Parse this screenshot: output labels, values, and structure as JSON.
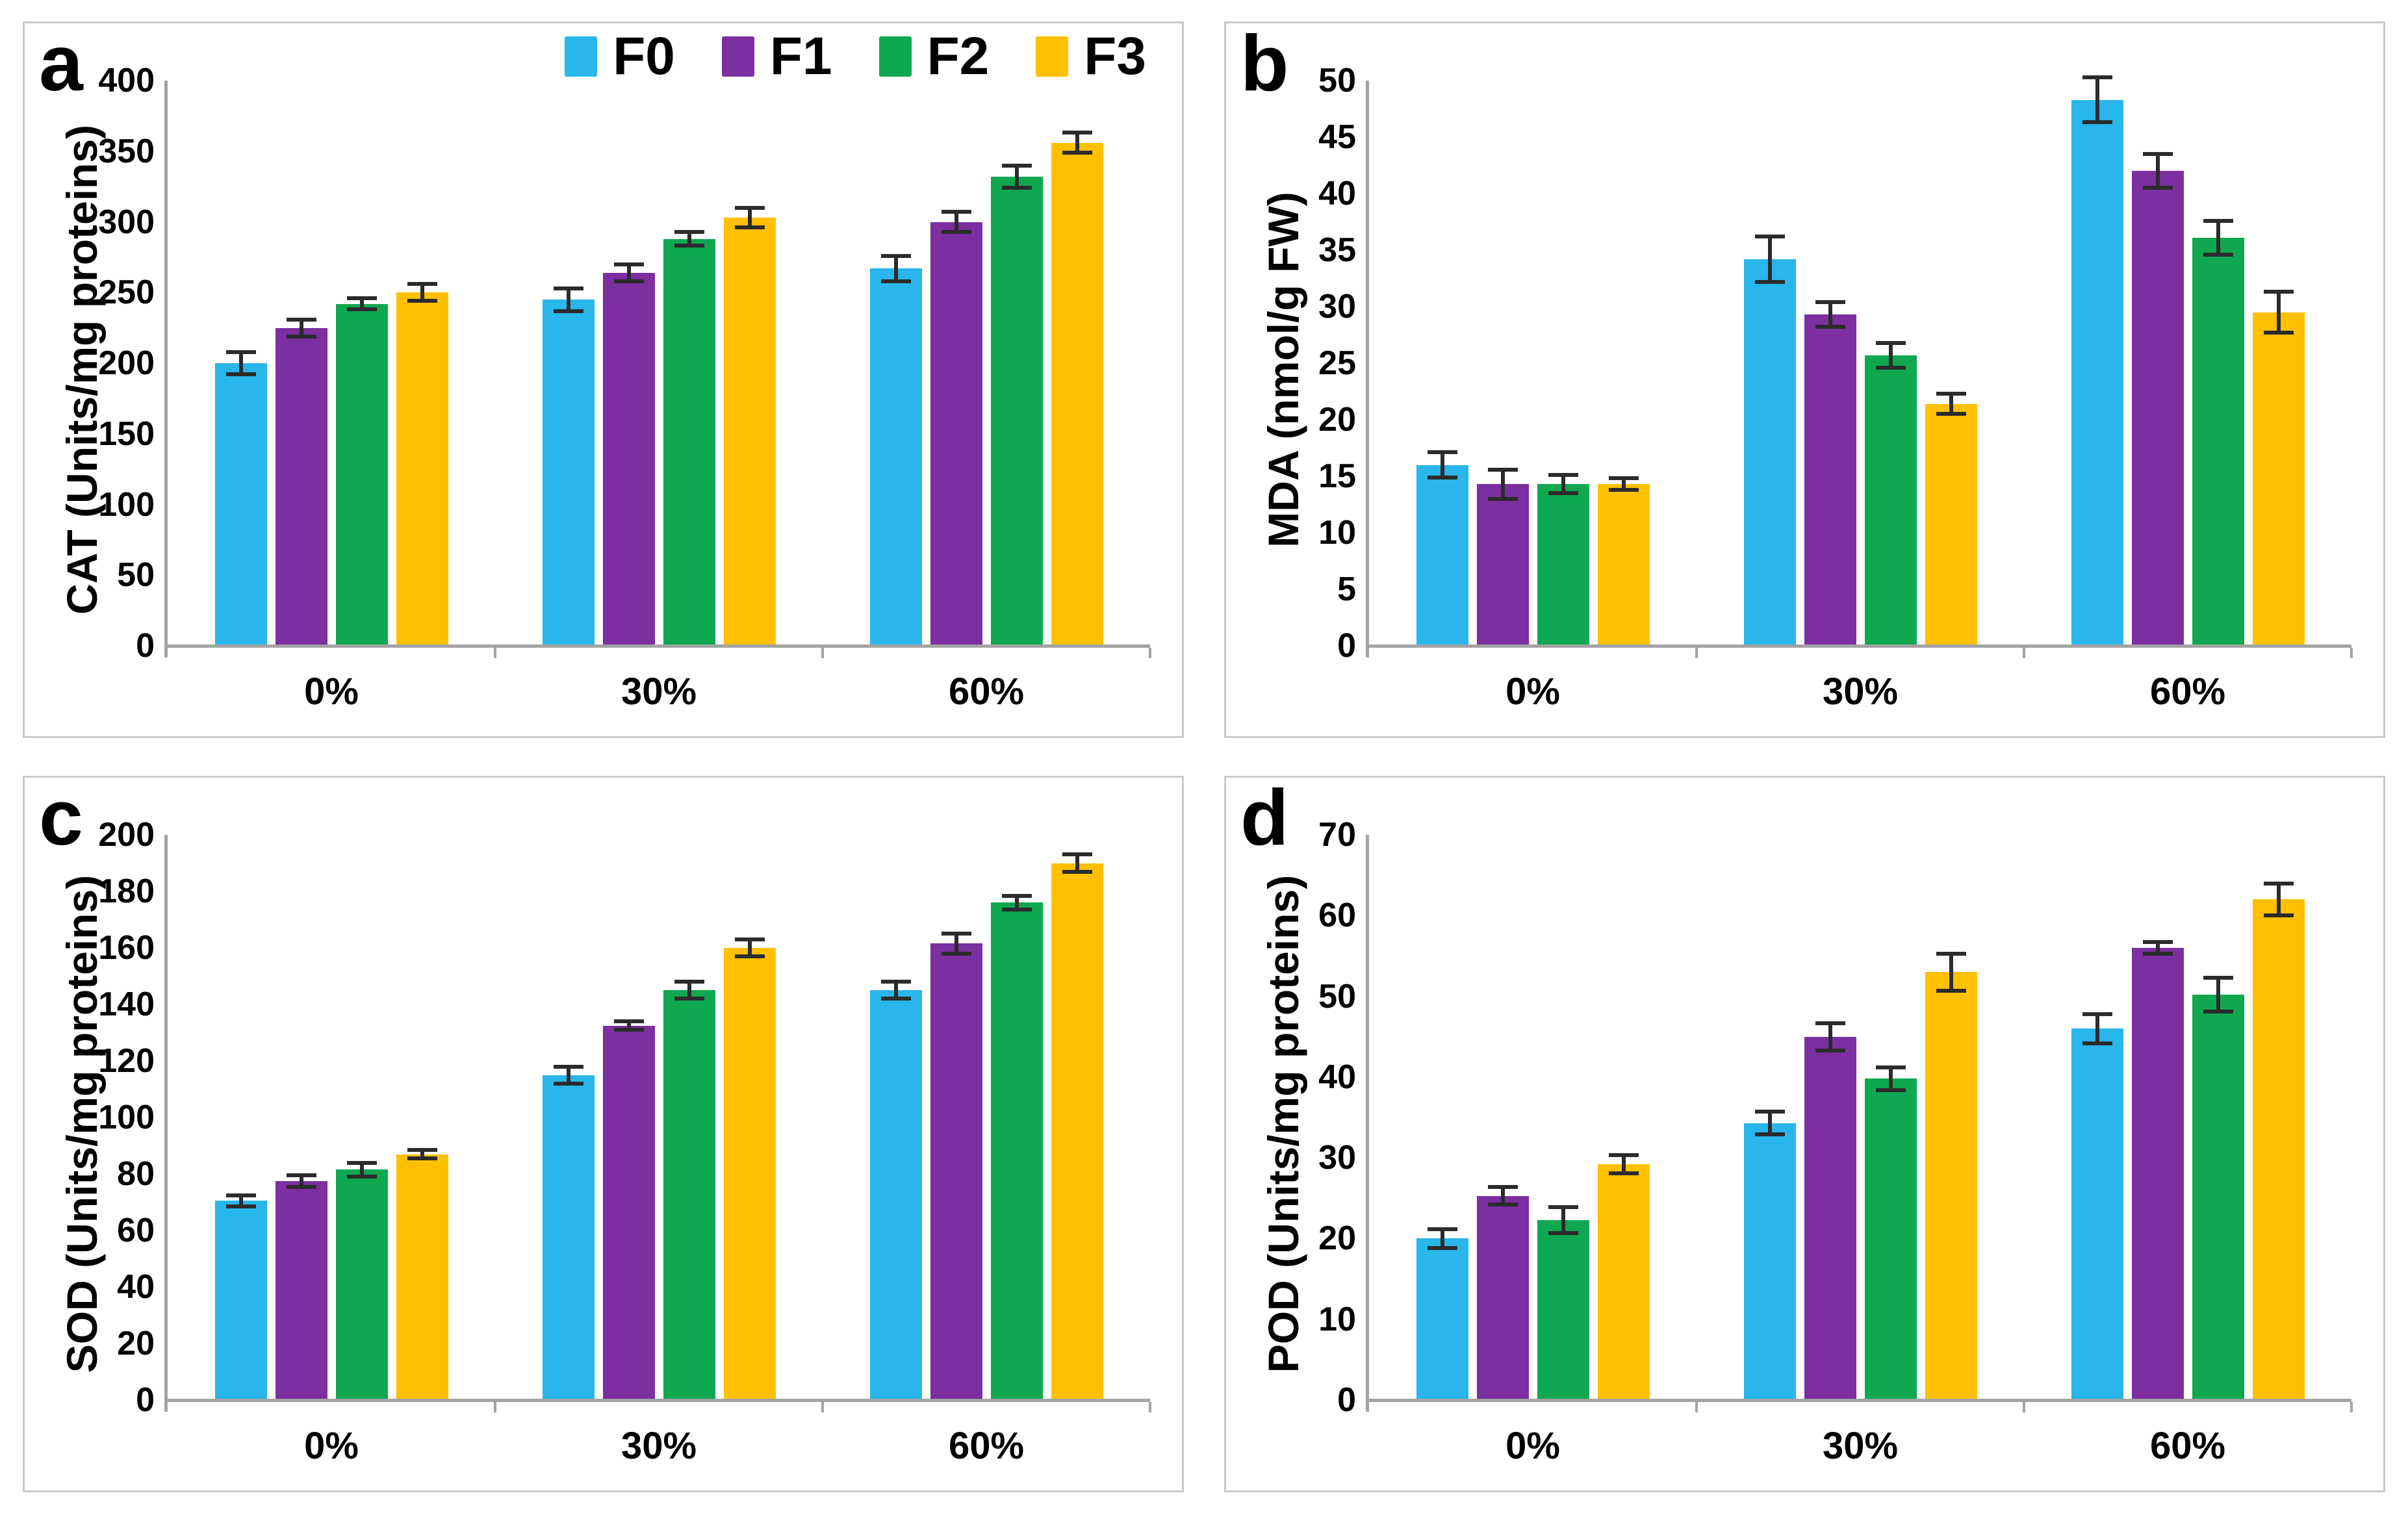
{
  "figure": {
    "background": "#FFFFFF",
    "panel_border_color": "#C9C9C9",
    "axis_color": "#A3A3A3",
    "error_bar_color": "#2B2B2B",
    "legend": {
      "position": "top-right-of-panel-a",
      "labels": [
        "F0",
        "F1",
        "F2",
        "F3"
      ],
      "colors": [
        "#29B6EA",
        "#7B2FA0",
        "#0FA850",
        "#FFC000"
      ]
    }
  },
  "chart_data": [
    {
      "panel_label": "a",
      "type": "bar",
      "title": "",
      "ylabel": "CAT (Units/mg proteins)",
      "xlabel": "",
      "categories": [
        "0%",
        "30%",
        "60%"
      ],
      "ylim": [
        0,
        400
      ],
      "ytick_step": 50,
      "grid": false,
      "legend_position": "top-right",
      "show_legend": true,
      "series": [
        {
          "name": "F0",
          "color": "#29B6EA",
          "values": [
            200,
            245,
            267
          ],
          "errors": [
            8,
            8,
            9
          ]
        },
        {
          "name": "F1",
          "color": "#7B2FA0",
          "values": [
            225,
            264,
            300
          ],
          "errors": [
            6,
            6,
            7
          ]
        },
        {
          "name": "F2",
          "color": "#0FA850",
          "values": [
            242,
            288,
            332
          ],
          "errors": [
            4,
            5,
            8
          ]
        },
        {
          "name": "F3",
          "color": "#FFC000",
          "values": [
            250,
            303,
            356
          ],
          "errors": [
            6,
            7,
            7
          ]
        }
      ]
    },
    {
      "panel_label": "b",
      "type": "bar",
      "title": "",
      "ylabel": "MDA (nmol/g FW)",
      "xlabel": "",
      "categories": [
        "0%",
        "30%",
        "60%"
      ],
      "ylim": [
        0,
        50
      ],
      "ytick_step": 5,
      "grid": false,
      "show_legend": false,
      "series": [
        {
          "name": "F0",
          "color": "#29B6EA",
          "values": [
            16,
            34.2,
            48.3
          ],
          "errors": [
            1.1,
            2.0,
            2.0
          ]
        },
        {
          "name": "F1",
          "color": "#7B2FA0",
          "values": [
            14.3,
            29.3,
            42.0
          ],
          "errors": [
            1.3,
            1.1,
            1.5
          ]
        },
        {
          "name": "F2",
          "color": "#0FA850",
          "values": [
            14.3,
            25.7,
            36.1
          ],
          "errors": [
            0.8,
            1.1,
            1.5
          ]
        },
        {
          "name": "F3",
          "color": "#FFC000",
          "values": [
            14.3,
            21.4,
            29.5
          ],
          "errors": [
            0.5,
            0.9,
            1.8
          ]
        }
      ]
    },
    {
      "panel_label": "c",
      "type": "bar",
      "title": "",
      "ylabel": "SOD (Units/mg proteins)",
      "xlabel": "",
      "categories": [
        "0%",
        "30%",
        "60%"
      ],
      "ylim": [
        0,
        200
      ],
      "ytick_step": 20,
      "grid": false,
      "show_legend": false,
      "series": [
        {
          "name": "F0",
          "color": "#29B6EA",
          "values": [
            70.5,
            115,
            145
          ],
          "errors": [
            2,
            3,
            3
          ]
        },
        {
          "name": "F1",
          "color": "#7B2FA0",
          "values": [
            77.5,
            132.5,
            161.5
          ],
          "errors": [
            2,
            1.5,
            3.5
          ]
        },
        {
          "name": "F2",
          "color": "#0FA850",
          "values": [
            81.5,
            145,
            176
          ],
          "errors": [
            2.5,
            3,
            2.5
          ]
        },
        {
          "name": "F3",
          "color": "#FFC000",
          "values": [
            87,
            160,
            190
          ],
          "errors": [
            1.5,
            3,
            3
          ]
        }
      ]
    },
    {
      "panel_label": "d",
      "type": "bar",
      "title": "",
      "ylabel": "POD (Units/mg proteins)",
      "xlabel": "",
      "categories": [
        "0%",
        "30%",
        "60%"
      ],
      "ylim": [
        0,
        70
      ],
      "ytick_step": 10,
      "grid": false,
      "show_legend": false,
      "series": [
        {
          "name": "F0",
          "color": "#29B6EA",
          "values": [
            20,
            34.3,
            46
          ],
          "errors": [
            1.2,
            1.4,
            1.8
          ]
        },
        {
          "name": "F1",
          "color": "#7B2FA0",
          "values": [
            25.3,
            45,
            56
          ],
          "errors": [
            1.1,
            1.7,
            0.7
          ]
        },
        {
          "name": "F2",
          "color": "#0FA850",
          "values": [
            22.3,
            39.8,
            50.2
          ],
          "errors": [
            1.6,
            1.4,
            2.1
          ]
        },
        {
          "name": "F3",
          "color": "#FFC000",
          "values": [
            29.2,
            53,
            62
          ],
          "errors": [
            1.1,
            2.3,
            2.0
          ]
        }
      ]
    }
  ]
}
